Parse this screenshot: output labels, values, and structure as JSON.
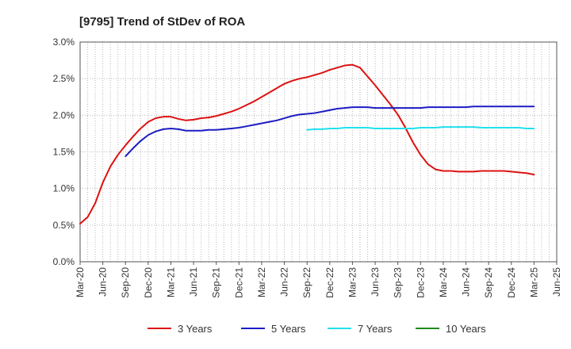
{
  "chart_data": {
    "type": "line",
    "title": "[9795]  Trend of StDev of ROA",
    "xlabel": "",
    "ylabel": "",
    "x_ticks": [
      "Mar-20",
      "Jun-20",
      "Sep-20",
      "Dec-20",
      "Mar-21",
      "Jun-21",
      "Sep-21",
      "Dec-21",
      "Mar-22",
      "Jun-22",
      "Sep-22",
      "Dec-22",
      "Mar-23",
      "Jun-23",
      "Sep-23",
      "Dec-23",
      "Mar-24",
      "Jun-24",
      "Sep-24",
      "Dec-24",
      "Mar-25",
      "Jun-25"
    ],
    "y_ticks": [
      "0.0%",
      "0.5%",
      "1.0%",
      "1.5%",
      "2.0%",
      "2.5%",
      "3.0%"
    ],
    "ylim": [
      0,
      3.0
    ],
    "grid": true,
    "legend_position": "bottom",
    "series": [
      {
        "name": "3 Years",
        "color": "#dd1111",
        "x": [
          "Mar-20",
          "Apr-20",
          "May-20",
          "Jun-20",
          "Jul-20",
          "Aug-20",
          "Sep-20",
          "Oct-20",
          "Nov-20",
          "Dec-20",
          "Jan-21",
          "Feb-21",
          "Mar-21",
          "Apr-21",
          "May-21",
          "Jun-21",
          "Jul-21",
          "Aug-21",
          "Sep-21",
          "Oct-21",
          "Nov-21",
          "Dec-21",
          "Jan-22",
          "Feb-22",
          "Mar-22",
          "Apr-22",
          "May-22",
          "Jun-22",
          "Jul-22",
          "Aug-22",
          "Sep-22",
          "Oct-22",
          "Nov-22",
          "Dec-22",
          "Jan-23",
          "Feb-23",
          "Mar-23",
          "Apr-23",
          "May-23",
          "Jun-23",
          "Jul-23",
          "Aug-23",
          "Sep-23",
          "Oct-23",
          "Nov-23",
          "Dec-23",
          "Jan-24",
          "Feb-24",
          "Mar-24",
          "Apr-24",
          "May-24",
          "Jun-24",
          "Jul-24",
          "Aug-24",
          "Sep-24",
          "Oct-24",
          "Nov-24",
          "Dec-24",
          "Jan-25",
          "Feb-25",
          "Mar-25"
        ],
        "values": [
          0.52,
          0.61,
          0.8,
          1.08,
          1.3,
          1.46,
          1.59,
          1.71,
          1.82,
          1.91,
          1.96,
          1.98,
          1.98,
          1.95,
          1.93,
          1.94,
          1.96,
          1.97,
          1.99,
          2.02,
          2.05,
          2.09,
          2.14,
          2.19,
          2.25,
          2.31,
          2.37,
          2.43,
          2.47,
          2.5,
          2.52,
          2.55,
          2.58,
          2.62,
          2.65,
          2.68,
          2.69,
          2.65,
          2.53,
          2.41,
          2.28,
          2.15,
          2.01,
          1.83,
          1.63,
          1.46,
          1.33,
          1.26,
          1.24,
          1.24,
          1.23,
          1.23,
          1.23,
          1.24,
          1.24,
          1.24,
          1.24,
          1.23,
          1.22,
          1.21,
          1.19
        ]
      },
      {
        "name": "5 Years",
        "color": "#1c1cc4",
        "x": [
          "Sep-20",
          "Oct-20",
          "Nov-20",
          "Dec-20",
          "Jan-21",
          "Feb-21",
          "Mar-21",
          "Apr-21",
          "May-21",
          "Jun-21",
          "Jul-21",
          "Aug-21",
          "Sep-21",
          "Oct-21",
          "Nov-21",
          "Dec-21",
          "Jan-22",
          "Feb-22",
          "Mar-22",
          "Apr-22",
          "May-22",
          "Jun-22",
          "Jul-22",
          "Aug-22",
          "Sep-22",
          "Oct-22",
          "Nov-22",
          "Dec-22",
          "Jan-23",
          "Feb-23",
          "Mar-23",
          "Apr-23",
          "May-23",
          "Jun-23",
          "Jul-23",
          "Aug-23",
          "Sep-23",
          "Oct-23",
          "Nov-23",
          "Dec-23",
          "Jan-24",
          "Feb-24",
          "Mar-24",
          "Apr-24",
          "May-24",
          "Jun-24",
          "Jul-24",
          "Aug-24",
          "Sep-24",
          "Oct-24",
          "Nov-24",
          "Dec-24",
          "Jan-25",
          "Feb-25",
          "Mar-25"
        ],
        "values": [
          1.44,
          1.55,
          1.65,
          1.73,
          1.78,
          1.81,
          1.82,
          1.81,
          1.79,
          1.79,
          1.79,
          1.8,
          1.8,
          1.81,
          1.82,
          1.83,
          1.85,
          1.87,
          1.89,
          1.91,
          1.93,
          1.96,
          1.99,
          2.01,
          2.02,
          2.03,
          2.05,
          2.07,
          2.09,
          2.1,
          2.11,
          2.11,
          2.11,
          2.1,
          2.1,
          2.1,
          2.1,
          2.1,
          2.1,
          2.1,
          2.11,
          2.11,
          2.11,
          2.11,
          2.11,
          2.11,
          2.12,
          2.12,
          2.12,
          2.12,
          2.12,
          2.12,
          2.12,
          2.12,
          2.12
        ]
      },
      {
        "name": "7 Years",
        "color": "#22e0ee",
        "x": [
          "Sep-22",
          "Oct-22",
          "Nov-22",
          "Dec-22",
          "Jan-23",
          "Feb-23",
          "Mar-23",
          "Apr-23",
          "May-23",
          "Jun-23",
          "Jul-23",
          "Aug-23",
          "Sep-23",
          "Oct-23",
          "Nov-23",
          "Dec-23",
          "Jan-24",
          "Feb-24",
          "Mar-24",
          "Apr-24",
          "May-24",
          "Jun-24",
          "Jul-24",
          "Aug-24",
          "Sep-24",
          "Oct-24",
          "Nov-24",
          "Dec-24",
          "Jan-25",
          "Feb-25",
          "Mar-25"
        ],
        "values": [
          1.8,
          1.81,
          1.81,
          1.82,
          1.82,
          1.83,
          1.83,
          1.83,
          1.83,
          1.82,
          1.82,
          1.82,
          1.82,
          1.82,
          1.82,
          1.83,
          1.83,
          1.83,
          1.84,
          1.84,
          1.84,
          1.84,
          1.84,
          1.83,
          1.83,
          1.83,
          1.83,
          1.83,
          1.83,
          1.82,
          1.82
        ]
      },
      {
        "name": "10 Years",
        "color": "#1e8c1e",
        "x": [],
        "values": []
      }
    ]
  }
}
